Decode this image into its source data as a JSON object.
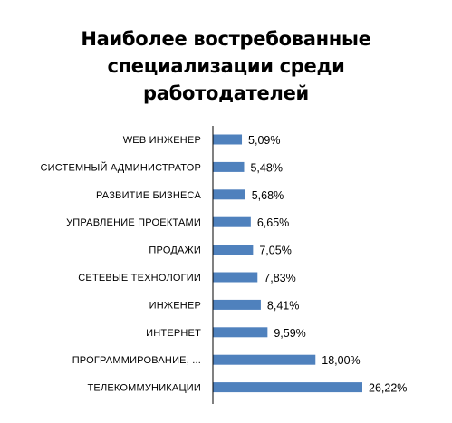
{
  "chart_data": {
    "type": "bar",
    "orientation": "horizontal",
    "title_lines": [
      "Наиболее востребованные",
      "специализации среди",
      "работодателей"
    ],
    "categories": [
      "WEB ИНЖЕНЕР",
      "СИСТЕМНЫЙ АДМИНИСТРАТОР",
      "РАЗВИТИЕ БИЗНЕСА",
      "УПРАВЛЕНИЕ ПРОЕКТАМИ",
      "ПРОДАЖИ",
      "СЕТЕВЫЕ ТЕХНОЛОГИИ",
      "ИНЖЕНЕР",
      "ИНТЕРНЕТ",
      "ПРОГРАММИРОВАНИЕ, ...",
      "ТЕЛЕКОММУНИКАЦИИ"
    ],
    "values": [
      5.09,
      5.48,
      5.68,
      6.65,
      7.05,
      7.83,
      8.41,
      9.59,
      18.0,
      26.22
    ],
    "value_labels": [
      "5,09%",
      "5,48%",
      "5,68%",
      "6,65%",
      "7,05%",
      "7,83%",
      "8,41%",
      "9,59%",
      "18,00%",
      "26,22%"
    ],
    "xlim": [
      0,
      26.22
    ],
    "grid": false,
    "legend": "none",
    "bar_color": "#4f81bd",
    "axis_color": "#000000"
  }
}
